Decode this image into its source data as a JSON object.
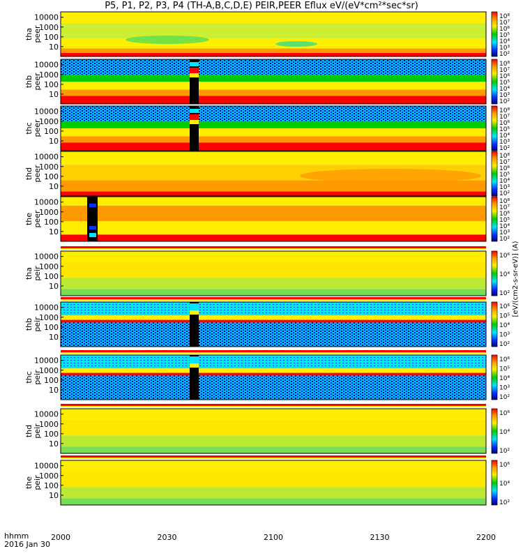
{
  "title": "P5, P1, P2, P3, P4 (TH-A,B,C,D,E) PEIR,PEER Eflux eV/(eV*cm²*sec*sr)",
  "time_axis": {
    "unit_label": "hhmm",
    "date_label": "2016 Jan 30"
  },
  "colors": {
    "red": "#ff0000",
    "orange": "#ff9900",
    "yellow": "#ffee00",
    "green": "#00cc00",
    "cyan": "#00e5ff",
    "blue": "#0033ff",
    "navy": "#000080",
    "black": "#000000"
  },
  "colorbar_label": "[eV/(cm2-s-sr-eV)] (A)",
  "chart_data": {
    "type": "heatmap",
    "x_ticks": [
      "2000",
      "2030",
      "2100",
      "2130",
      "2200"
    ],
    "y_ticks": [
      "10000",
      "1000",
      "100",
      "10"
    ],
    "panels": [
      {
        "probe": "tha",
        "species": "peer",
        "colorbar_ticks": [
          "10⁸",
          "10⁷",
          "10⁶",
          "10⁵",
          "10⁴",
          "10³",
          "10²"
        ]
      },
      {
        "probe": "thb",
        "species": "peer",
        "colorbar_ticks": [
          "10⁸",
          "10⁷",
          "10⁶",
          "10⁵",
          "10⁴",
          "10³",
          "10²"
        ]
      },
      {
        "probe": "thc",
        "species": "peer",
        "colorbar_ticks": [
          "10⁸",
          "10⁷",
          "10⁶",
          "10⁵",
          "10⁴",
          "10³",
          "10²"
        ]
      },
      {
        "probe": "thd",
        "species": "peer",
        "colorbar_ticks": [
          "10⁸",
          "10⁷",
          "10⁶",
          "10⁵",
          "10⁴",
          "10³",
          "10²"
        ]
      },
      {
        "probe": "the",
        "species": "peer",
        "colorbar_ticks": [
          "10⁸",
          "10⁷",
          "10⁶",
          "10⁵",
          "10⁴",
          "10³",
          "10²"
        ]
      },
      {
        "probe": "tha",
        "species": "peir",
        "colorbar_ticks": [
          "10⁶",
          "10⁴",
          "10²"
        ]
      },
      {
        "probe": "thb",
        "species": "peir",
        "colorbar_ticks": [
          "10⁶",
          "10⁵",
          "10⁴",
          "10³",
          "10²"
        ]
      },
      {
        "probe": "thc",
        "species": "peir",
        "colorbar_ticks": [
          "10⁶",
          "10⁵",
          "10⁴",
          "10³",
          "10²"
        ]
      },
      {
        "probe": "thd",
        "species": "peir",
        "colorbar_ticks": [
          "10⁶",
          "10⁴",
          "10²"
        ]
      },
      {
        "probe": "the",
        "species": "peir",
        "colorbar_ticks": [
          "10⁶",
          "10⁴",
          "10²"
        ]
      }
    ]
  }
}
